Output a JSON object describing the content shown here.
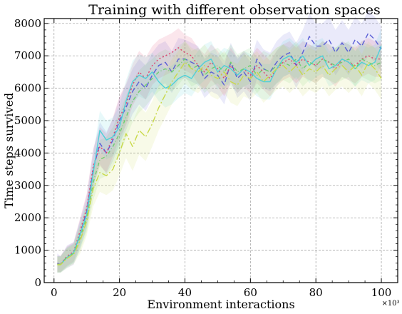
{
  "chart_data": {
    "type": "line",
    "title": "Training with different observation spaces",
    "xlabel": "Environment interactions",
    "ylabel": "Time steps survived",
    "x_multiplier_label": "×10³",
    "xlim": [
      -3,
      105
    ],
    "ylim": [
      0,
      8150
    ],
    "xticks": [
      0,
      20,
      40,
      60,
      80,
      100
    ],
    "yticks": [
      0,
      1000,
      2000,
      3000,
      4000,
      5000,
      6000,
      7000,
      8000
    ],
    "grid": true,
    "x": [
      1,
      2,
      4,
      6,
      8,
      10,
      12,
      14,
      16,
      18,
      20,
      22,
      24,
      26,
      28,
      30,
      32,
      34,
      36,
      38,
      40,
      42,
      44,
      46,
      48,
      50,
      52,
      54,
      56,
      58,
      60,
      62,
      64,
      66,
      68,
      70,
      72,
      74,
      76,
      78,
      80,
      82,
      84,
      86,
      88,
      90,
      92,
      94,
      96,
      98,
      100
    ],
    "series": [
      {
        "color": "#5b5fd6",
        "dash": "7,4",
        "values": [
          600,
          560,
          800,
          900,
          1500,
          2200,
          3500,
          4300,
          4000,
          4400,
          5000,
          5400,
          5900,
          6200,
          6000,
          6400,
          6700,
          6800,
          6500,
          6900,
          6900,
          6800,
          6700,
          6300,
          6500,
          6400,
          6100,
          6800,
          6300,
          6500,
          6200,
          6900,
          6600,
          6500,
          6800,
          7000,
          7100,
          6700,
          7100,
          7600,
          7300,
          7300,
          7500,
          7100,
          7400,
          7100,
          7500,
          7300,
          7700,
          7500,
          7200
        ],
        "band": [
          300,
          250,
          350,
          350,
          450,
          500,
          600,
          650,
          650,
          650,
          700,
          700,
          700,
          700,
          700,
          700,
          650,
          650,
          650,
          650,
          600,
          600,
          600,
          600,
          600,
          600,
          600,
          600,
          600,
          600,
          600,
          600,
          600,
          600,
          650,
          650,
          650,
          700,
          700,
          700,
          700,
          700,
          700,
          700,
          700,
          700,
          700,
          700,
          700,
          700,
          700
        ]
      },
      {
        "color": "#e0406e",
        "dash": "2,3",
        "values": [
          580,
          580,
          820,
          950,
          1600,
          2300,
          3600,
          4200,
          4000,
          4500,
          5100,
          5500,
          6100,
          6500,
          6300,
          6700,
          6900,
          7000,
          7100,
          7250,
          7100,
          7000,
          6700,
          6500,
          6800,
          6600,
          6300,
          6700,
          6400,
          6600,
          6400,
          6700,
          6500,
          6300,
          6600,
          6800,
          6900,
          6700,
          6900,
          6800,
          6700,
          6900,
          6800,
          6600,
          6900,
          6800,
          6700,
          6900,
          7000,
          6900,
          6900
        ],
        "band": [
          250,
          250,
          300,
          300,
          400,
          450,
          550,
          600,
          600,
          600,
          650,
          650,
          650,
          650,
          650,
          600,
          600,
          600,
          600,
          600,
          550,
          550,
          550,
          550,
          550,
          550,
          550,
          550,
          550,
          550,
          550,
          550,
          550,
          550,
          550,
          550,
          550,
          550,
          550,
          550,
          550,
          550,
          550,
          550,
          550,
          550,
          550,
          550,
          550,
          550,
          550
        ]
      },
      {
        "color": "#4fd0d8",
        "dash": "",
        "values": [
          570,
          560,
          780,
          920,
          1500,
          2100,
          3400,
          4700,
          4400,
          4500,
          4800,
          5600,
          6200,
          6400,
          6300,
          6500,
          6200,
          6000,
          6100,
          6300,
          6400,
          6300,
          6600,
          6800,
          6900,
          6500,
          6700,
          6600,
          6400,
          6600,
          6500,
          6300,
          6200,
          6200,
          6600,
          6900,
          7000,
          6800,
          7000,
          6700,
          6900,
          7000,
          6600,
          6700,
          6900,
          6800,
          6600,
          6800,
          6700,
          6800,
          7300
        ],
        "band": [
          250,
          250,
          300,
          300,
          400,
          450,
          550,
          600,
          600,
          600,
          650,
          650,
          650,
          650,
          650,
          600,
          600,
          600,
          600,
          600,
          550,
          550,
          550,
          550,
          550,
          550,
          550,
          550,
          550,
          550,
          550,
          550,
          550,
          550,
          550,
          550,
          550,
          550,
          550,
          550,
          550,
          550,
          550,
          550,
          550,
          550,
          550,
          550,
          550,
          550,
          550
        ]
      },
      {
        "color": "#6fcf6f",
        "dash": "5,3,1,3",
        "values": [
          560,
          570,
          790,
          900,
          1400,
          2000,
          3100,
          3800,
          3900,
          4200,
          4600,
          5100,
          5600,
          5900,
          6100,
          6300,
          6500,
          6600,
          6500,
          6700,
          6900,
          6600,
          6700,
          6400,
          6600,
          6700,
          6500,
          6800,
          6500,
          6600,
          6700,
          6400,
          6600,
          6500,
          6700,
          6800,
          6700,
          6900,
          6600,
          6800,
          6700,
          6900,
          6800,
          6700,
          6800,
          6900,
          6600,
          6900,
          6800,
          6700,
          6800
        ],
        "band": [
          250,
          250,
          300,
          300,
          400,
          450,
          550,
          600,
          600,
          600,
          650,
          650,
          650,
          650,
          650,
          600,
          600,
          600,
          600,
          600,
          550,
          550,
          550,
          550,
          550,
          550,
          550,
          550,
          550,
          550,
          550,
          550,
          550,
          550,
          550,
          550,
          550,
          550,
          550,
          550,
          550,
          550,
          550,
          550,
          550,
          550,
          550,
          550,
          550,
          550,
          550
        ]
      },
      {
        "color": "#c9d94a",
        "dash": "9,3,2,3",
        "values": [
          550,
          550,
          750,
          870,
          1300,
          1900,
          2900,
          3400,
          3300,
          3500,
          4000,
          4600,
          4200,
          4700,
          4500,
          4900,
          5400,
          5800,
          6200,
          6500,
          6800,
          6600,
          6500,
          6700,
          6400,
          6300,
          6500,
          6200,
          6100,
          6400,
          6300,
          6500,
          6200,
          6400,
          6600,
          6700,
          6500,
          6700,
          6400,
          6600,
          6500,
          6700,
          6400,
          6600,
          6700,
          6500,
          6700,
          6400,
          6800,
          6600,
          6300
        ],
        "band": [
          250,
          250,
          300,
          300,
          400,
          450,
          550,
          600,
          600,
          650,
          700,
          750,
          750,
          750,
          750,
          700,
          700,
          700,
          700,
          650,
          650,
          650,
          650,
          650,
          650,
          650,
          650,
          650,
          650,
          650,
          650,
          650,
          650,
          650,
          650,
          650,
          650,
          650,
          650,
          650,
          650,
          650,
          650,
          650,
          650,
          650,
          650,
          650,
          650,
          650,
          650
        ]
      }
    ]
  }
}
